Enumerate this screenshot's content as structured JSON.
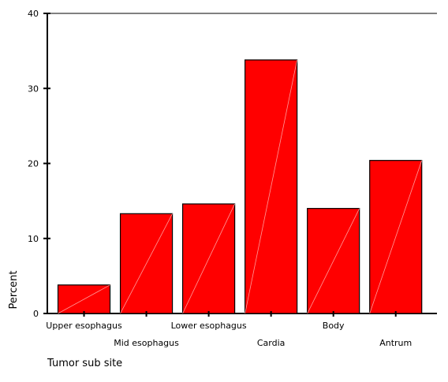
{
  "chart_data": {
    "type": "bar",
    "xlabel": "Tumor sub site",
    "ylabel": "Percent",
    "ylim": [
      0,
      40
    ],
    "yticks": [
      0,
      10,
      20,
      30,
      40
    ],
    "categories": [
      "Upper esophagus",
      "Mid esophagus",
      "Lower esophagus",
      "Cardia",
      "Body",
      "Antrum"
    ],
    "values": [
      3.8,
      13.3,
      14.6,
      33.8,
      14.0,
      20.4
    ],
    "bar_color": "#ff0000",
    "grid": false
  }
}
